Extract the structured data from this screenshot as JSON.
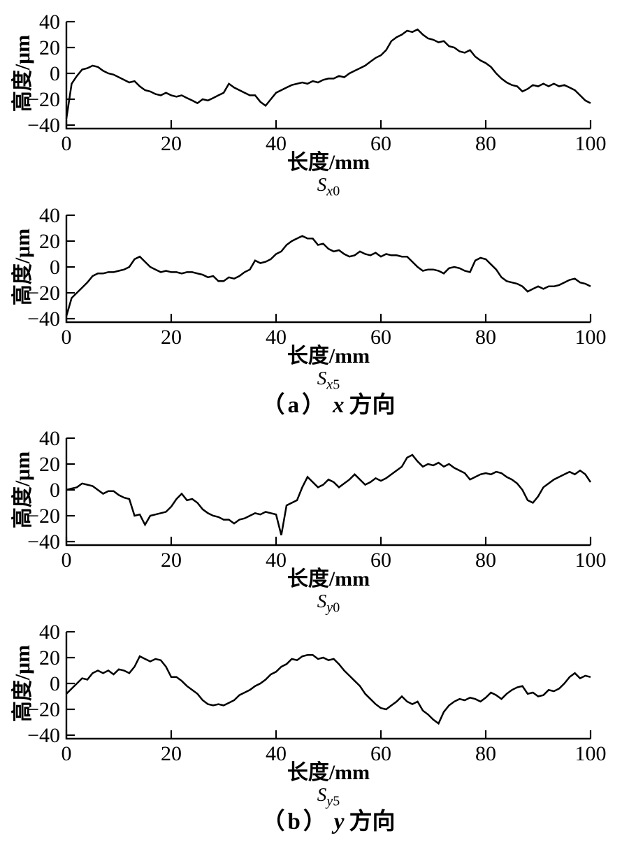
{
  "figure": {
    "background": "#ffffff",
    "stroke_color": "#000000"
  },
  "captions": [
    {
      "index": "（a）",
      "variable": "x",
      "suffix": "方向"
    },
    {
      "index": "（b）",
      "variable": "y",
      "suffix": "方向"
    }
  ],
  "chart_data": [
    {
      "type": "line",
      "name": "Sx0",
      "series_label": {
        "base": "S",
        "sub_var": "x",
        "sub_num": "0"
      },
      "xlabel": "长度/mm",
      "ylabel": "高度/μm",
      "xlim": [
        0,
        100
      ],
      "ylim": [
        -40,
        40
      ],
      "xticks": [
        0,
        20,
        40,
        60,
        80,
        100
      ],
      "yticks": [
        40,
        20,
        0,
        -20,
        -40
      ],
      "grid": false,
      "legend": "none",
      "x_unit": "mm",
      "y_unit": "μm",
      "values": [
        -35,
        -8,
        -2,
        3,
        4,
        6,
        5,
        2,
        0,
        -1,
        -3,
        -5,
        -7,
        -6,
        -10,
        -13,
        -14,
        -16,
        -17,
        -15,
        -17,
        -18,
        -17,
        -19,
        -21,
        -23,
        -20,
        -21,
        -19,
        -17,
        -15,
        -8,
        -11,
        -13,
        -15,
        -17,
        -17,
        -22,
        -25,
        -20,
        -15,
        -13,
        -11,
        -9,
        -8,
        -7,
        -8,
        -6,
        -7,
        -5,
        -4,
        -4,
        -2,
        -3,
        0,
        2,
        4,
        6,
        9,
        12,
        14,
        18,
        25,
        28,
        30,
        33,
        32,
        34,
        30,
        27,
        26,
        24,
        25,
        21,
        20,
        17,
        16,
        18,
        13,
        10,
        8,
        5,
        0,
        -4,
        -7,
        -9,
        -10,
        -14,
        -12,
        -9,
        -10,
        -8,
        -10,
        -8,
        -10,
        -9,
        -11,
        -13,
        -17,
        -21,
        -23
      ]
    },
    {
      "type": "line",
      "name": "Sx5",
      "series_label": {
        "base": "S",
        "sub_var": "x",
        "sub_num": "5"
      },
      "xlabel": "长度/mm",
      "ylabel": "高度/μm",
      "xlim": [
        0,
        100
      ],
      "ylim": [
        -40,
        40
      ],
      "xticks": [
        0,
        20,
        40,
        60,
        80,
        100
      ],
      "yticks": [
        40,
        20,
        0,
        -20,
        -40
      ],
      "grid": false,
      "legend": "none",
      "x_unit": "mm",
      "y_unit": "μm",
      "values": [
        -38,
        -24,
        -20,
        -16,
        -12,
        -7,
        -5,
        -5,
        -4,
        -4,
        -3,
        -2,
        0,
        6,
        8,
        4,
        0,
        -2,
        -4,
        -3,
        -4,
        -4,
        -5,
        -4,
        -4,
        -5,
        -6,
        -8,
        -7,
        -11,
        -11,
        -8,
        -9,
        -7,
        -4,
        -2,
        5,
        3,
        4,
        6,
        10,
        12,
        17,
        20,
        22,
        24,
        22,
        22,
        17,
        18,
        14,
        12,
        13,
        10,
        8,
        9,
        12,
        10,
        9,
        11,
        8,
        10,
        9,
        9,
        8,
        8,
        4,
        0,
        -3,
        -2,
        -2,
        -3,
        -5,
        -1,
        0,
        -1,
        -3,
        -4,
        5,
        7,
        6,
        2,
        -2,
        -8,
        -11,
        -12,
        -13,
        -15,
        -19,
        -17,
        -15,
        -17,
        -15,
        -15,
        -14,
        -12,
        -10,
        -9,
        -12,
        -13,
        -15
      ]
    },
    {
      "type": "line",
      "name": "Sy0",
      "series_label": {
        "base": "S",
        "sub_var": "y",
        "sub_num": "0"
      },
      "xlabel": "长度/mm",
      "ylabel": "高度/μm",
      "xlim": [
        0,
        100
      ],
      "ylim": [
        -40,
        40
      ],
      "xticks": [
        0,
        20,
        40,
        60,
        80,
        100
      ],
      "yticks": [
        40,
        20,
        0,
        -20,
        -40
      ],
      "grid": false,
      "legend": "none",
      "x_unit": "mm",
      "y_unit": "μm",
      "values": [
        0,
        1,
        2,
        5,
        4,
        3,
        0,
        -3,
        -1,
        -1,
        -4,
        -6,
        -7,
        -20,
        -19,
        -27,
        -20,
        -19,
        -18,
        -17,
        -13,
        -7,
        -3,
        -8,
        -7,
        -10,
        -15,
        -18,
        -20,
        -21,
        -23,
        -23,
        -26,
        -23,
        -22,
        -20,
        -18,
        -19,
        -17,
        -18,
        -19,
        -35,
        -12,
        -10,
        -8,
        2,
        10,
        6,
        2,
        4,
        8,
        6,
        2,
        5,
        8,
        12,
        8,
        4,
        6,
        9,
        7,
        9,
        12,
        15,
        18,
        25,
        27,
        22,
        18,
        20,
        19,
        21,
        18,
        20,
        17,
        15,
        13,
        8,
        10,
        12,
        13,
        12,
        14,
        13,
        10,
        8,
        5,
        0,
        -8,
        -10,
        -5,
        2,
        5,
        8,
        10,
        12,
        14,
        12,
        15,
        12,
        6
      ]
    },
    {
      "type": "line",
      "name": "Sy5",
      "series_label": {
        "base": "S",
        "sub_var": "y",
        "sub_num": "5"
      },
      "xlabel": "长度/mm",
      "ylabel": "高度/μm",
      "xlim": [
        0,
        100
      ],
      "ylim": [
        -40,
        40
      ],
      "xticks": [
        0,
        20,
        40,
        60,
        80,
        100
      ],
      "yticks": [
        40,
        20,
        0,
        -20,
        -40
      ],
      "grid": false,
      "legend": "none",
      "x_unit": "mm",
      "y_unit": "μm",
      "values": [
        -8,
        -4,
        0,
        4,
        3,
        8,
        10,
        8,
        10,
        7,
        11,
        10,
        8,
        13,
        21,
        19,
        17,
        19,
        18,
        13,
        5,
        5,
        2,
        -2,
        -5,
        -8,
        -13,
        -16,
        -17,
        -16,
        -17,
        -15,
        -13,
        -9,
        -7,
        -5,
        -2,
        0,
        3,
        7,
        9,
        13,
        15,
        19,
        18,
        21,
        22,
        22,
        19,
        20,
        18,
        19,
        15,
        10,
        6,
        2,
        -2,
        -8,
        -12,
        -16,
        -19,
        -20,
        -17,
        -14,
        -10,
        -14,
        -16,
        -14,
        -21,
        -24,
        -28,
        -31,
        -22,
        -17,
        -14,
        -12,
        -13,
        -11,
        -12,
        -14,
        -11,
        -7,
        -9,
        -12,
        -8,
        -5,
        -3,
        -2,
        -8,
        -7,
        -10,
        -9,
        -5,
        -6,
        -4,
        0,
        5,
        8,
        4,
        6,
        5
      ]
    }
  ]
}
